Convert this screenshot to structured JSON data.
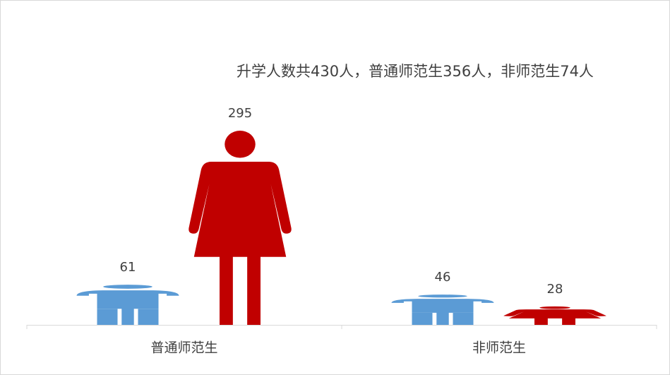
{
  "chart_data": {
    "type": "pictograph",
    "annotation": "升学人数共430人，普通师范生356人，非师范生74人",
    "categories": [
      "普通师范生",
      "非师范生"
    ],
    "series": [
      {
        "color": "#5b9bd5",
        "values": [
          61,
          46
        ],
        "icon": "male"
      },
      {
        "color": "#c00000",
        "values": [
          295,
          28
        ],
        "icon": "female"
      }
    ]
  }
}
